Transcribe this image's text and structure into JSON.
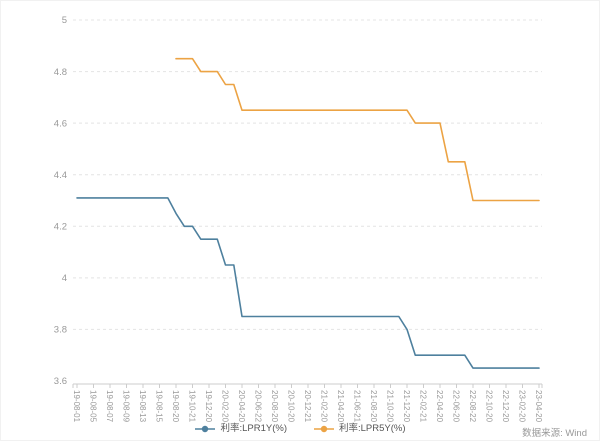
{
  "chart_data": {
    "type": "line",
    "title": "",
    "xlabel": "",
    "ylabel": "",
    "ylim": [
      3.6,
      5.0
    ],
    "yticks": [
      5,
      4.8,
      4.6,
      4.4,
      4.2,
      4,
      3.8,
      3.6
    ],
    "grid": {
      "horizontal": true,
      "style": "dashed",
      "color": "#e4e4e4"
    },
    "legend_position": "bottom-center",
    "x_label_every": 2,
    "source_note": "数据来源: Wind",
    "x": [
      "19-08-01",
      "19-08-02",
      "19-08-05",
      "19-08-06",
      "19-08-07",
      "19-08-08",
      "19-08-09",
      "19-08-12",
      "19-08-13",
      "19-08-14",
      "19-08-15",
      "19-08-19",
      "19-08-20",
      "19-09-20",
      "19-10-21",
      "19-11-20",
      "19-12-20",
      "20-01-20",
      "20-02-20",
      "20-03-20",
      "20-04-20",
      "20-05-20",
      "20-06-22",
      "20-07-20",
      "20-08-20",
      "20-09-21",
      "20-10-20",
      "20-11-20",
      "20-12-21",
      "21-01-20",
      "21-02-20",
      "21-03-22",
      "21-04-20",
      "21-05-20",
      "21-06-21",
      "21-07-20",
      "21-08-20",
      "21-09-22",
      "21-10-20",
      "21-11-22",
      "21-12-20",
      "22-01-20",
      "22-02-21",
      "22-03-21",
      "22-04-20",
      "22-05-20",
      "22-06-20",
      "22-07-20",
      "22-08-22",
      "22-09-20",
      "22-10-20",
      "22-11-21",
      "22-12-20",
      "23-01-20",
      "23-02-20",
      "23-03-20",
      "23-04-20"
    ],
    "series": [
      {
        "name": "利率:LPR1Y(%)",
        "color": "#4e809e",
        "values": [
          4.31,
          4.31,
          4.31,
          4.31,
          4.31,
          4.31,
          4.31,
          4.31,
          4.31,
          4.31,
          4.31,
          4.31,
          4.25,
          4.2,
          4.2,
          4.15,
          4.15,
          4.15,
          4.05,
          4.05,
          3.85,
          3.85,
          3.85,
          3.85,
          3.85,
          3.85,
          3.85,
          3.85,
          3.85,
          3.85,
          3.85,
          3.85,
          3.85,
          3.85,
          3.85,
          3.85,
          3.85,
          3.85,
          3.85,
          3.85,
          3.8,
          3.7,
          3.7,
          3.7,
          3.7,
          3.7,
          3.7,
          3.7,
          3.65,
          3.65,
          3.65,
          3.65,
          3.65,
          3.65,
          3.65,
          3.65,
          3.65
        ]
      },
      {
        "name": "利率:LPR5Y(%)",
        "color": "#eca344",
        "values": [
          null,
          null,
          null,
          null,
          null,
          null,
          null,
          null,
          null,
          null,
          null,
          null,
          4.85,
          4.85,
          4.85,
          4.8,
          4.8,
          4.8,
          4.75,
          4.75,
          4.65,
          4.65,
          4.65,
          4.65,
          4.65,
          4.65,
          4.65,
          4.65,
          4.65,
          4.65,
          4.65,
          4.65,
          4.65,
          4.65,
          4.65,
          4.65,
          4.65,
          4.65,
          4.65,
          4.65,
          4.65,
          4.6,
          4.6,
          4.6,
          4.6,
          4.45,
          4.45,
          4.45,
          4.3,
          4.3,
          4.3,
          4.3,
          4.3,
          4.3,
          4.3,
          4.3,
          4.3
        ]
      }
    ],
    "axis_colors": {
      "axis_line": "#cccccc",
      "tick_label": "#999999"
    }
  }
}
